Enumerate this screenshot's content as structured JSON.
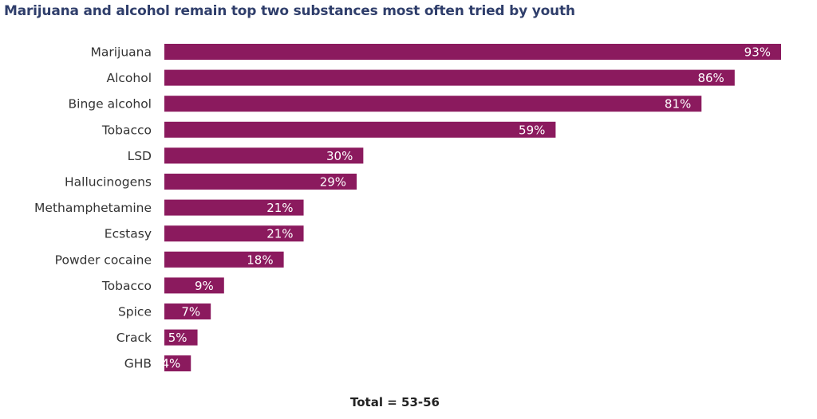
{
  "chart_data": {
    "type": "bar",
    "orientation": "horizontal",
    "title": "Marijuana and alcohol remain top two substances most often tried by youth",
    "categories": [
      "Marijuana",
      "Alcohol",
      "Binge alcohol",
      "Tobacco",
      "LSD",
      "Hallucinogens",
      "Methamphetamine",
      "Ecstasy",
      "Powder cocaine",
      "Tobacco",
      "Spice",
      "Crack",
      "GHB"
    ],
    "values": [
      93,
      86,
      81,
      59,
      30,
      29,
      21,
      21,
      18,
      9,
      7,
      5,
      4
    ],
    "data_labels": [
      "93%",
      "86%",
      "81%",
      "59%",
      "30%",
      "29%",
      "21%",
      "21%",
      "18%",
      "9%",
      "7%",
      "5%",
      "4%"
    ],
    "unit": "%",
    "xlim": [
      0,
      100
    ],
    "grid": false,
    "legend": "none",
    "bar_color": "#8b1a5e",
    "footnote": "Total = 53-56"
  }
}
